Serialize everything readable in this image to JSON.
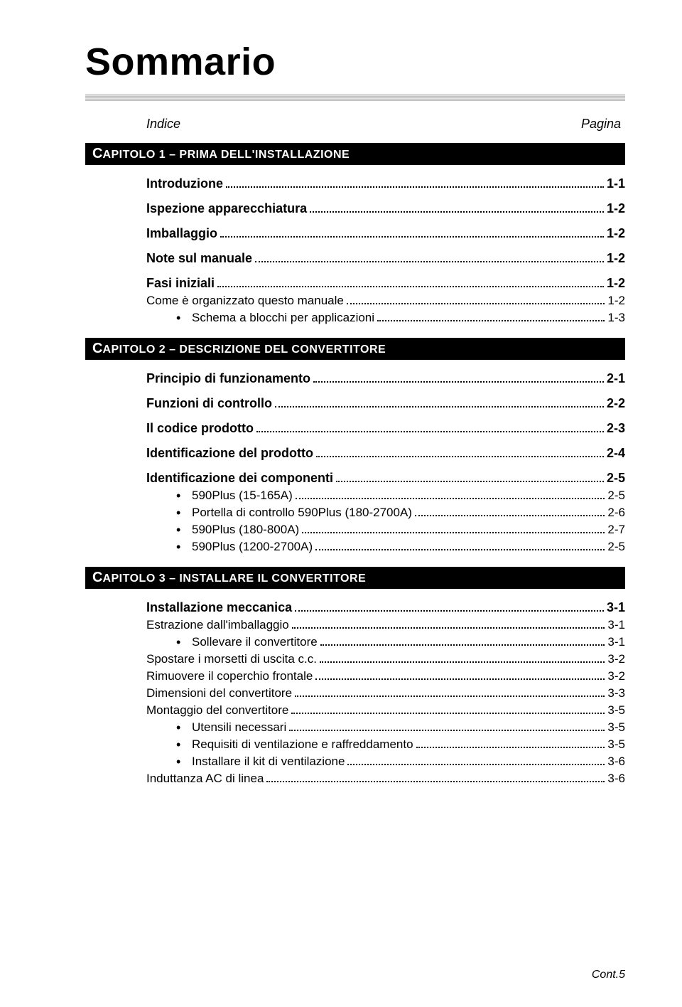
{
  "title": "Sommario",
  "head_left": "Indice",
  "head_right": "Pagina",
  "footer": "Cont.5",
  "chapters": [
    {
      "bar_prefix": "C",
      "bar_text": "APITOLO 1 – PRIMA DELL'INSTALLAZIONE",
      "groups": [
        {
          "bold": true,
          "label": "Introduzione",
          "page": "1-1",
          "bullets": []
        },
        {
          "bold": true,
          "label": "Ispezione apparecchiatura",
          "page": "1-2",
          "bullets": []
        },
        {
          "bold": true,
          "label": "Imballaggio",
          "page": "1-2",
          "bullets": []
        },
        {
          "bold": true,
          "label": "Note sul manuale",
          "page": "1-2",
          "bullets": []
        },
        {
          "bold": true,
          "label": "Fasi iniziali",
          "page": "1-2",
          "bullets": []
        },
        {
          "bold": false,
          "label": "Come è organizzato questo manuale",
          "page": "1-2",
          "bullets": [
            {
              "label": "Schema a blocchi per applicazioni",
              "page": "1-3"
            }
          ]
        }
      ]
    },
    {
      "bar_prefix": "C",
      "bar_text": "APITOLO 2 – DESCRIZIONE DEL CONVERTITORE",
      "groups": [
        {
          "bold": true,
          "label": "Principio di funzionamento",
          "page": "2-1",
          "bullets": []
        },
        {
          "bold": true,
          "label": "Funzioni di controllo",
          "page": "2-2",
          "bullets": []
        },
        {
          "bold": true,
          "label": "Il codice prodotto",
          "page": "2-3",
          "bullets": []
        },
        {
          "bold": true,
          "label": "Identificazione del prodotto",
          "page": "2-4",
          "bullets": []
        },
        {
          "bold": true,
          "label": "Identificazione dei componenti",
          "page": "2-5",
          "bullets": [
            {
              "label": "590Plus (15-165A)",
              "page": "2-5"
            },
            {
              "label": "Portella di controllo 590Plus (180-2700A)",
              "page": "2-6"
            },
            {
              "label": "590Plus (180-800A)",
              "page": "2-7"
            },
            {
              "label": "590Plus (1200-2700A)",
              "page": "2-5"
            }
          ]
        }
      ]
    },
    {
      "bar_prefix": "C",
      "bar_text": "APITOLO 3 – INSTALLARE IL CONVERTITORE",
      "groups": [
        {
          "bold": true,
          "label": "Installazione meccanica",
          "page": "3-1",
          "bullets": []
        },
        {
          "bold": false,
          "label": "Estrazione dall'imballaggio",
          "page": "3-1",
          "bullets": [
            {
              "label": "Sollevare il convertitore",
              "page": "3-1"
            }
          ]
        },
        {
          "bold": false,
          "label": "Spostare i morsetti di uscita c.c.",
          "page": "3-2",
          "bullets": []
        },
        {
          "bold": false,
          "label": "Rimuovere il coperchio frontale",
          "page": "3-2",
          "bullets": []
        },
        {
          "bold": false,
          "label": "Dimensioni del convertitore",
          "page": "3-3",
          "bullets": []
        },
        {
          "bold": false,
          "label": "Montaggio del convertitore",
          "page": "3-5",
          "bullets": [
            {
              "label": "Utensili necessari",
              "page": "3-5"
            },
            {
              "label": "Requisiti di ventilazione e raffreddamento",
              "page": "3-5"
            },
            {
              "label": "Installare il kit di ventilazione",
              "page": "3-6"
            }
          ]
        },
        {
          "bold": false,
          "label": "Induttanza AC di linea",
          "page": "3-6",
          "bullets": []
        }
      ]
    }
  ]
}
